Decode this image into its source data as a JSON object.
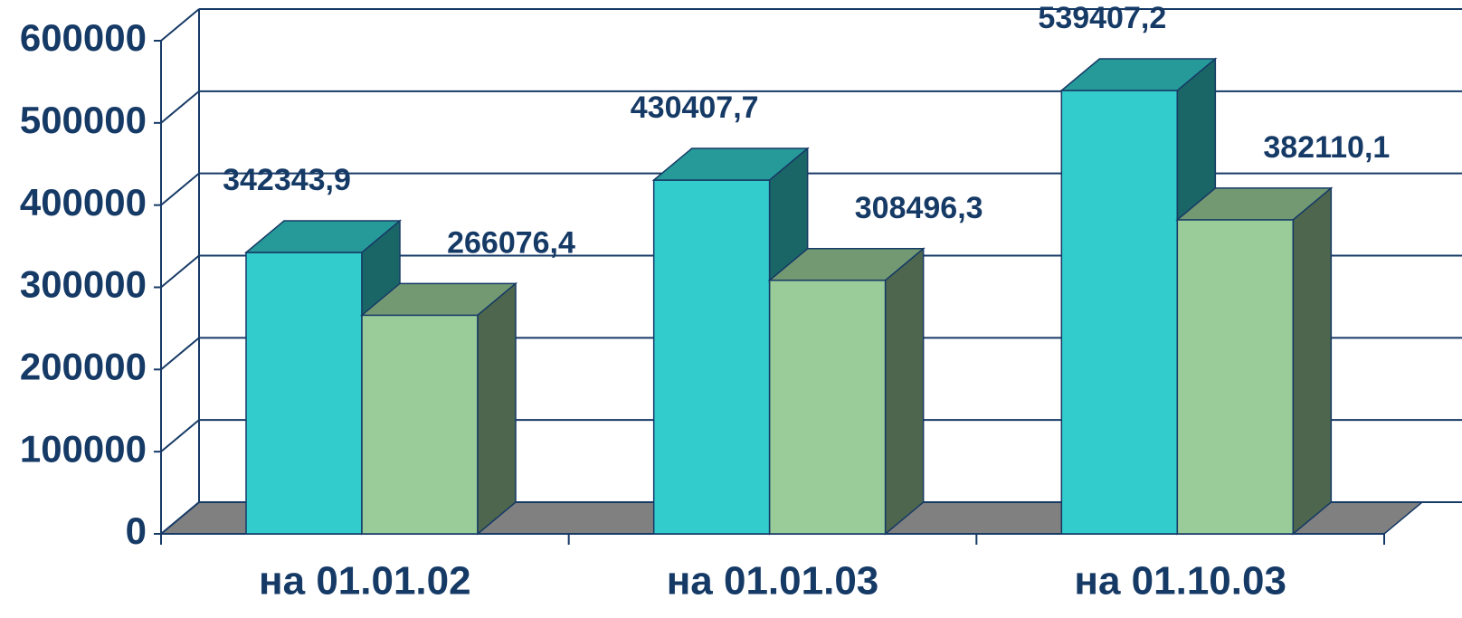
{
  "chart_data": {
    "type": "bar3d",
    "categories": [
      "на 01.01.02",
      "на 01.01.03",
      "на 01.10.03"
    ],
    "series": [
      {
        "color": "#33cccc",
        "values": [
          342343.9,
          430407.7,
          539407.2
        ],
        "value_labels": [
          "342343,9",
          "430407,7",
          "539407,2"
        ]
      },
      {
        "color": "#99cc99",
        "values": [
          266076.4,
          308496.3,
          382110.1
        ],
        "value_labels": [
          "266076,4",
          "308496,3",
          "382110,1"
        ]
      }
    ],
    "ylim": [
      0,
      600000
    ],
    "yticks": [
      0,
      100000,
      200000,
      300000,
      400000,
      500000,
      600000
    ],
    "grid": true
  }
}
